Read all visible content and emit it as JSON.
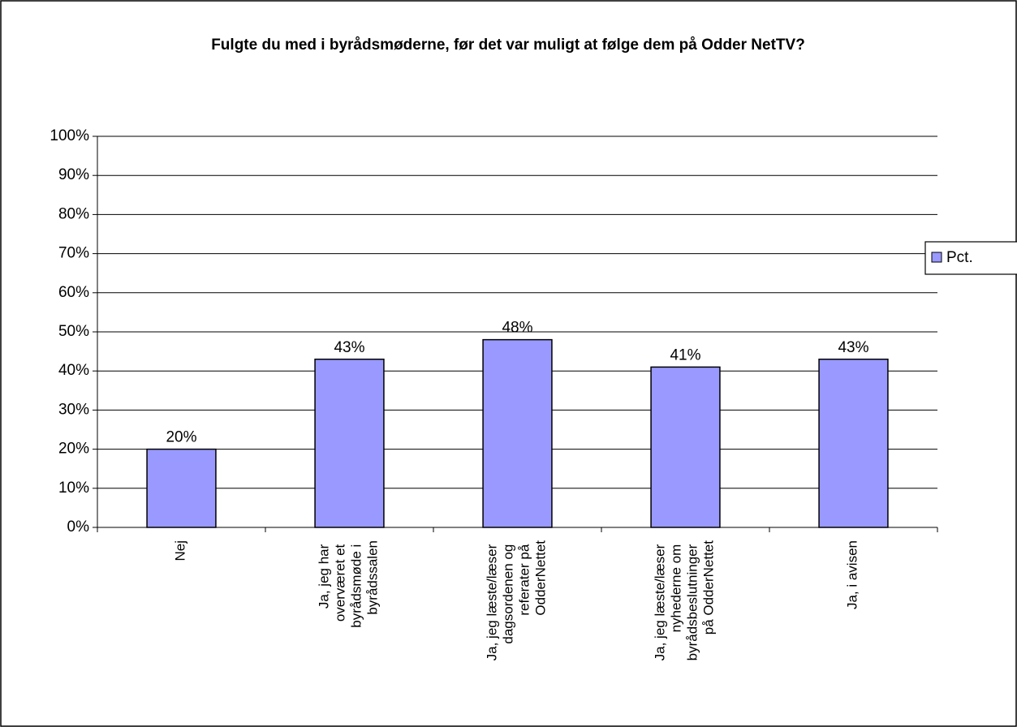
{
  "chart_data": {
    "type": "bar",
    "title": "Fulgte du med i byrådsmøderne, før det var muligt at følge dem på Odder NetTV?",
    "categories": [
      "Nej",
      "Ja, jeg har overværet et byrådsmøde i byrådssalen",
      "Ja, jeg læste/læser dagsordenen og referater på OdderNettet",
      "Ja, jeg læste/læser nyhederne om byrådsbeslutninger på OdderNettet",
      "Ja, i avisen"
    ],
    "series": [
      {
        "name": "Pct.",
        "color": "#9999ff",
        "values": [
          20,
          43,
          48,
          41,
          43
        ],
        "value_labels": [
          "20%",
          "43%",
          "48%",
          "41%",
          "43%"
        ]
      }
    ],
    "ylim": [
      0,
      100
    ],
    "yticks": [
      {
        "value": 0,
        "label": "0%"
      },
      {
        "value": 10,
        "label": "10%"
      },
      {
        "value": 20,
        "label": "20%"
      },
      {
        "value": 30,
        "label": "30%"
      },
      {
        "value": 40,
        "label": "40%"
      },
      {
        "value": 50,
        "label": "50%"
      },
      {
        "value": 60,
        "label": "60%"
      },
      {
        "value": 70,
        "label": "70%"
      },
      {
        "value": 80,
        "label": "80%"
      },
      {
        "value": 90,
        "label": "90%"
      },
      {
        "value": 100,
        "label": "100%"
      }
    ],
    "grid": true,
    "legend": "right"
  }
}
